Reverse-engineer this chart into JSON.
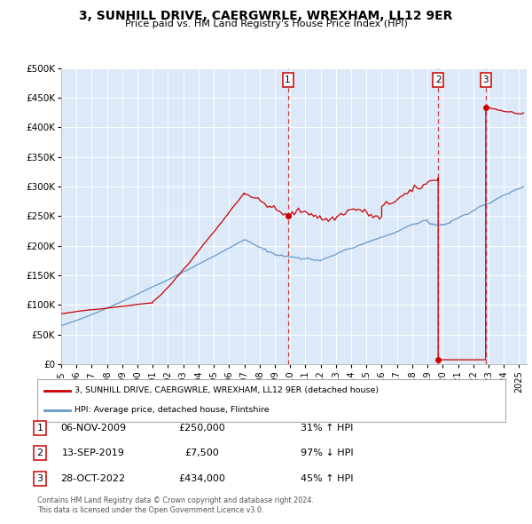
{
  "title": "3, SUNHILL DRIVE, CAERGWRLE, WREXHAM, LL12 9ER",
  "subtitle": "Price paid vs. HM Land Registry's House Price Index (HPI)",
  "ylim": [
    0,
    500000
  ],
  "xlim_start": 1995.0,
  "xlim_end": 2025.5,
  "yticks": [
    0,
    50000,
    100000,
    150000,
    200000,
    250000,
    300000,
    350000,
    400000,
    450000,
    500000
  ],
  "ytick_labels": [
    "£0",
    "£50K",
    "£100K",
    "£150K",
    "£200K",
    "£250K",
    "£300K",
    "£350K",
    "£400K",
    "£450K",
    "£500K"
  ],
  "xticks": [
    1995,
    1996,
    1997,
    1998,
    1999,
    2000,
    2001,
    2002,
    2003,
    2004,
    2005,
    2006,
    2007,
    2008,
    2009,
    2010,
    2011,
    2012,
    2013,
    2014,
    2015,
    2016,
    2017,
    2018,
    2019,
    2020,
    2021,
    2022,
    2023,
    2024,
    2025
  ],
  "background_color": "#ffffff",
  "plot_bg_color": "#dce9f8",
  "grid_color": "#ffffff",
  "red_line_color": "#cc0000",
  "blue_line_color": "#6699cc",
  "t1_date": 2009.85,
  "t1_price": 250000,
  "t2_date": 2019.7,
  "t2_price": 7500,
  "t3_date": 2022.82,
  "t3_price": 434000,
  "legend1": "3, SUNHILL DRIVE, CAERGWRLE, WREXHAM, LL12 9ER (detached house)",
  "legend2": "HPI: Average price, detached house, Flintshire",
  "table_rows": [
    {
      "num": "1",
      "date": "06-NOV-2009",
      "price": "£250,000",
      "hpi": "31% ↑ HPI"
    },
    {
      "num": "2",
      "date": "13-SEP-2019",
      "price": "£7,500",
      "hpi": "97% ↓ HPI"
    },
    {
      "num": "3",
      "date": "28-OCT-2022",
      "price": "£434,000",
      "hpi": "45% ↑ HPI"
    }
  ],
  "footnote1": "Contains HM Land Registry data © Crown copyright and database right 2024.",
  "footnote2": "This data is licensed under the Open Government Licence v3.0."
}
